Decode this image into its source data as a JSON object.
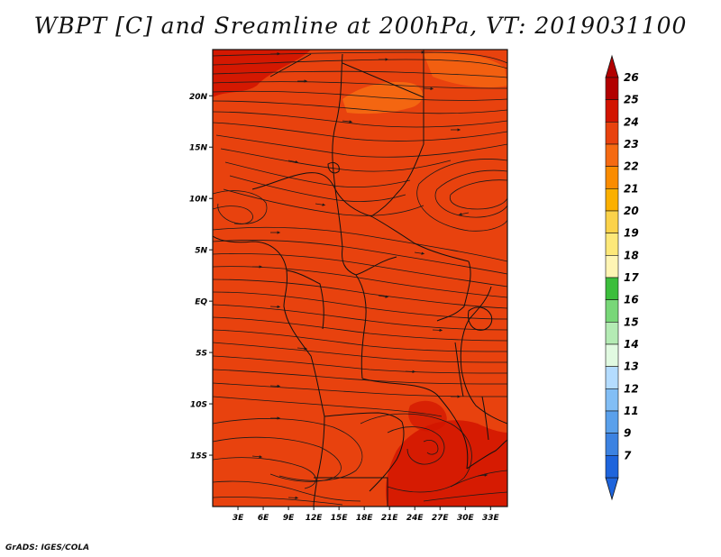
{
  "title": "WBPT [C] and Sreamline at 200hPa, VT: 2019031100",
  "footer": "GrADS: IGES/COLA",
  "map": {
    "lat_ticks": [
      {
        "value": 20,
        "label": "20N"
      },
      {
        "value": 15,
        "label": "15N"
      },
      {
        "value": 10,
        "label": "10N"
      },
      {
        "value": 5,
        "label": "5N"
      },
      {
        "value": 0,
        "label": "EQ"
      },
      {
        "value": -5,
        "label": "5S"
      },
      {
        "value": -10,
        "label": "10S"
      },
      {
        "value": -15,
        "label": "15S"
      }
    ],
    "lon_ticks": [
      {
        "value": 3,
        "label": "3E"
      },
      {
        "value": 6,
        "label": "6E"
      },
      {
        "value": 9,
        "label": "9E"
      },
      {
        "value": 12,
        "label": "12E"
      },
      {
        "value": 15,
        "label": "15E"
      },
      {
        "value": 18,
        "label": "18E"
      },
      {
        "value": 21,
        "label": "21E"
      },
      {
        "value": 24,
        "label": "24E"
      },
      {
        "value": 27,
        "label": "27E"
      },
      {
        "value": 30,
        "label": "30E"
      },
      {
        "value": 33,
        "label": "33E"
      }
    ],
    "lon_range": [
      0,
      35
    ],
    "lat_range": [
      -20,
      24.5
    ],
    "background_color": "#e8420e"
  },
  "colorbar": {
    "levels": [
      {
        "label": "26",
        "color": "#b20000"
      },
      {
        "label": "25",
        "color": "#d21400"
      },
      {
        "label": "24",
        "color": "#e8420e"
      },
      {
        "label": "23",
        "color": "#f56a12"
      },
      {
        "label": "22",
        "color": "#fa8c00"
      },
      {
        "label": "21",
        "color": "#fbb000"
      },
      {
        "label": "20",
        "color": "#fbd24a"
      },
      {
        "label": "19",
        "color": "#fde879"
      },
      {
        "label": "18",
        "color": "#fff5b4"
      },
      {
        "label": "17",
        "color": "#3cbe3c"
      },
      {
        "label": "16",
        "color": "#78d778"
      },
      {
        "label": "15",
        "color": "#b4ebb4"
      },
      {
        "label": "14",
        "color": "#e1fae1"
      },
      {
        "label": "13",
        "color": "#b4dcff"
      },
      {
        "label": "12",
        "color": "#82bef5"
      },
      {
        "label": "11",
        "color": "#5aa0eb"
      },
      {
        "label": "9",
        "color": "#3c82e1"
      },
      {
        "label": "7",
        "color": "#1e64dc"
      }
    ],
    "low_end_color": "#1e64dc",
    "high_end_color": "#b20000"
  }
}
